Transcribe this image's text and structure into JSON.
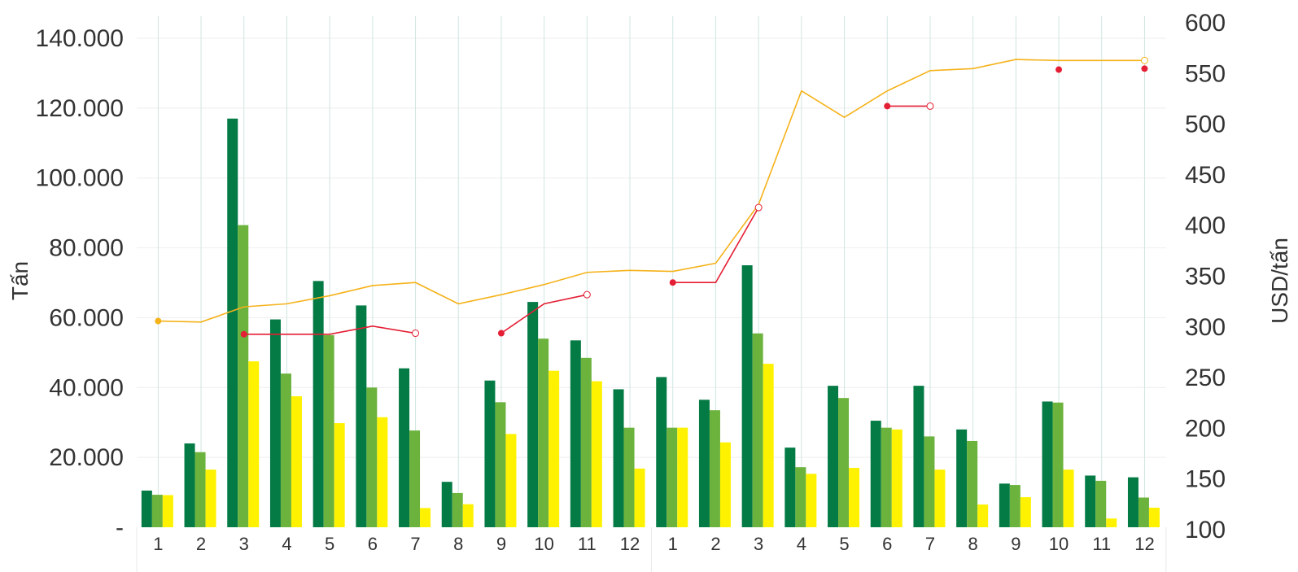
{
  "chart_data": {
    "type": "bar",
    "categories": [
      "1",
      "2",
      "3",
      "4",
      "5",
      "6",
      "7",
      "8",
      "9",
      "10",
      "11",
      "12",
      "1",
      "2",
      "3",
      "4",
      "5",
      "6",
      "7",
      "8",
      "9",
      "10",
      "11",
      "12"
    ],
    "ylabel": "Tấn",
    "y2label": "USD/tấn",
    "ylim": [
      0,
      140000
    ],
    "y2lim": [
      100,
      600
    ],
    "y_ticks": [
      "-",
      "20.000",
      "40.000",
      "60.000",
      "80.000",
      "100.000",
      "120.000",
      "140.000"
    ],
    "y2_ticks": [
      "100",
      "150",
      "200",
      "250",
      "300",
      "350",
      "400",
      "450",
      "500",
      "550",
      "600"
    ],
    "grid": true,
    "series": [
      {
        "type": "bar",
        "color": "#047a45",
        "values": [
          10500,
          24000,
          117000,
          59500,
          70500,
          63500,
          45500,
          13000,
          42000,
          64500,
          53500,
          39500,
          43000,
          36500,
          75000,
          22800,
          40500,
          30500,
          40500,
          28000,
          12500,
          36000,
          14800,
          14300
        ]
      },
      {
        "type": "bar",
        "color": "#6cb33e",
        "values": [
          9300,
          21500,
          86500,
          44000,
          55000,
          40000,
          27700,
          9800,
          35800,
          54000,
          48500,
          28500,
          28500,
          33500,
          55500,
          17200,
          37000,
          28500,
          26000,
          24700,
          12100,
          35700,
          13300,
          8500
        ]
      },
      {
        "type": "bar",
        "color": "#fff200",
        "values": [
          9200,
          16500,
          47500,
          37500,
          29800,
          31500,
          5500,
          6600,
          26700,
          44800,
          41800,
          16800,
          28500,
          24300,
          46800,
          15300,
          17000,
          28000,
          16500,
          6500,
          8600,
          16500,
          2500,
          5600
        ]
      },
      {
        "type": "line",
        "color": "#f5b21a",
        "values": [
          305,
          304,
          319,
          322,
          330,
          340,
          343,
          322,
          331,
          341,
          353,
          355,
          354,
          362,
          420,
          532,
          506,
          532,
          552,
          554,
          563,
          562,
          562,
          562
        ]
      },
      {
        "type": "line",
        "color": "#e41e34",
        "values": [
          null,
          null,
          292,
          292,
          292,
          300,
          293,
          null,
          293,
          322,
          331,
          null,
          343,
          343,
          417,
          null,
          null,
          517,
          517,
          null,
          null,
          553,
          null,
          554
        ]
      }
    ]
  }
}
